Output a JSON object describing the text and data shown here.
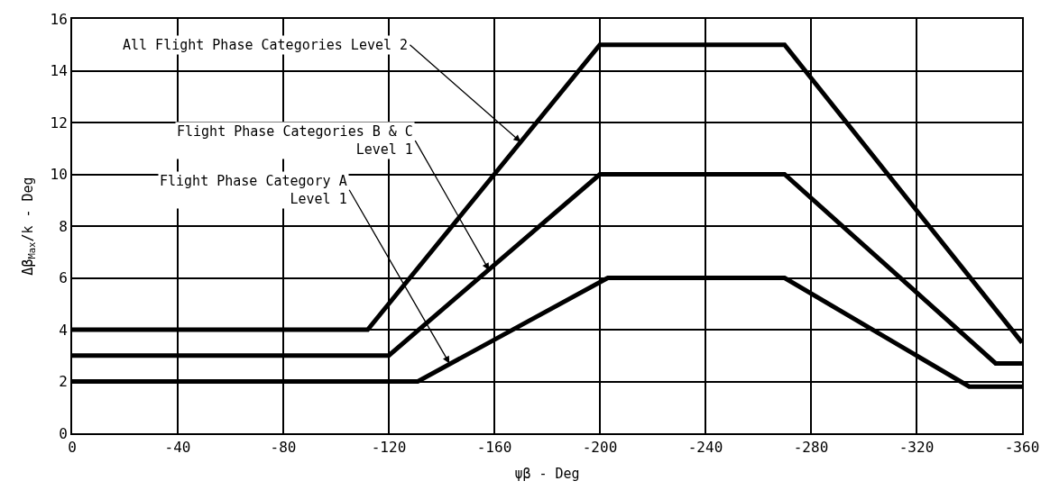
{
  "chart_data": {
    "type": "line",
    "xlabel": "ψβ - Deg",
    "ylabel": "Δβ$_{Max}$/k - Deg",
    "xlim": [
      0,
      -360
    ],
    "xticks": [
      0,
      -40,
      -80,
      -120,
      -160,
      -200,
      -240,
      -280,
      -320,
      -360
    ],
    "ylim": [
      0,
      16
    ],
    "yticks": [
      0,
      2,
      4,
      6,
      8,
      10,
      12,
      14,
      16
    ],
    "grid": true,
    "marker": "none",
    "line_style": "solid",
    "series": [
      {
        "color": "#000000",
        "x": [
          0,
          -112,
          -200,
          -270,
          -360
        ],
        "values": [
          4,
          4,
          15,
          15,
          3.5
        ]
      },
      {
        "color": "#000000",
        "x": [
          0,
          -120,
          -200,
          -270,
          -350,
          -360
        ],
        "values": [
          3,
          3,
          10,
          10,
          2.7,
          2.7
        ]
      },
      {
        "color": "#000000",
        "x": [
          0,
          -131,
          -203,
          -270,
          -340,
          -360
        ],
        "values": [
          2,
          2,
          6,
          6,
          1.8,
          1.8
        ]
      }
    ],
    "annotations": [
      {
        "text": "All Flight Phase Categories Level 2",
        "x": -170,
        "y": 11.25
      },
      {
        "text": "Flight Phase Categories B & C\nLevel 1",
        "x": -158,
        "y": 6.3
      },
      {
        "text": "Flight Phase Category A\nLevel 1",
        "x": -143,
        "y": 2.7
      }
    ]
  }
}
